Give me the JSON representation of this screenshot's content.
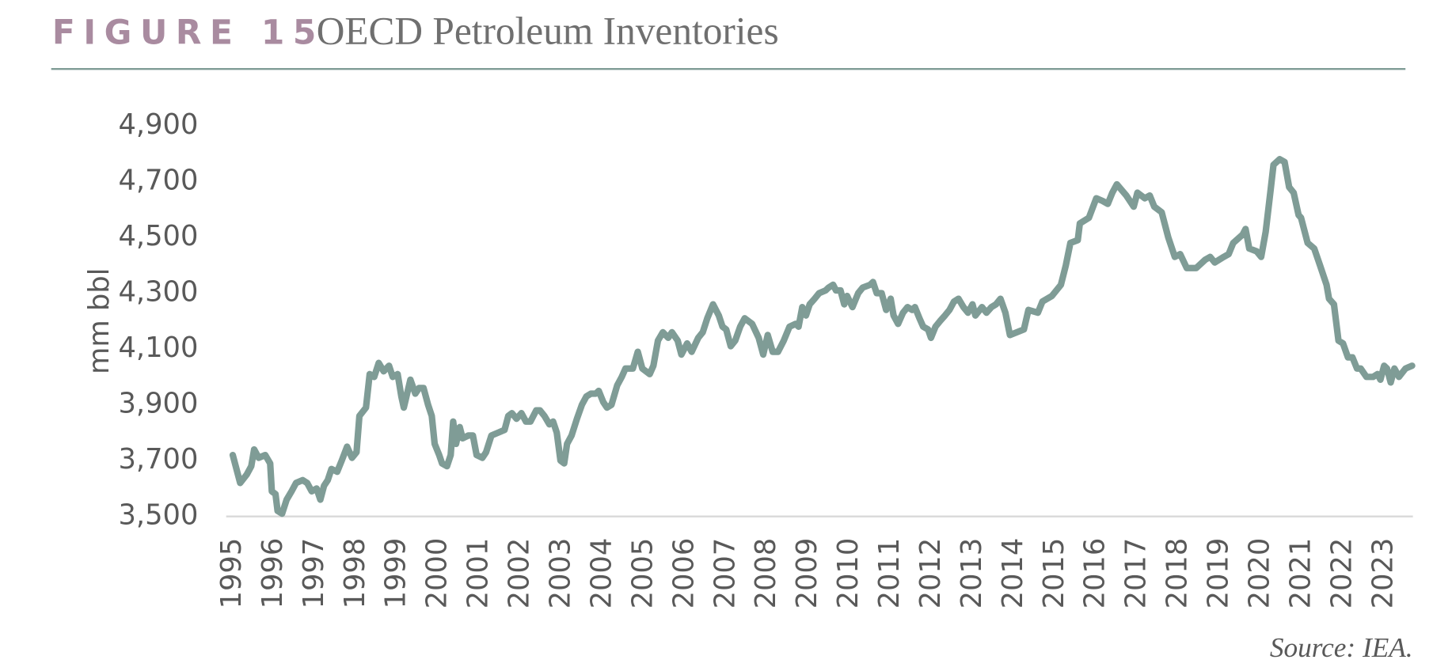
{
  "chart_data": {
    "type": "line",
    "figure_label": "FIGURE 15",
    "title": "OECD Petroleum Inventories",
    "y_label": "mm bbl",
    "source": "Source: IEA.",
    "xlim": [
      1994.84,
      2023.7
    ],
    "ylim": [
      3500,
      4900
    ],
    "xticks": [
      1995,
      1996,
      1997,
      1998,
      1999,
      2000,
      2001,
      2002,
      2003,
      2004,
      2005,
      2006,
      2007,
      2008,
      2009,
      2010,
      2011,
      2012,
      2013,
      2014,
      2015,
      2016,
      2017,
      2018,
      2019,
      2020,
      2021,
      2022,
      2023
    ],
    "yticks": [
      {
        "value": 4900,
        "label": "4,900"
      },
      {
        "value": 4700,
        "label": "4,700"
      },
      {
        "value": 4500,
        "label": "4,500"
      },
      {
        "value": 4300,
        "label": "4,300"
      },
      {
        "value": 4100,
        "label": "4,100"
      },
      {
        "value": 3900,
        "label": "3,900"
      },
      {
        "value": 3700,
        "label": "3,700"
      },
      {
        "value": 3500,
        "label": "3,500"
      }
    ],
    "grid": false,
    "series": [
      {
        "name": "OECD Petroleum Inventories",
        "color": "#7f9c96",
        "x": [
          1995.0,
          1995.18,
          1995.34,
          1995.45,
          1995.52,
          1995.63,
          1995.79,
          1995.91,
          1995.95,
          1996.04,
          1996.09,
          1996.2,
          1996.31,
          1996.43,
          1996.54,
          1996.7,
          1996.81,
          1996.92,
          1997.04,
          1997.13,
          1997.22,
          1997.31,
          1997.4,
          1997.54,
          1997.65,
          1997.78,
          1997.9,
          1998.01,
          1998.08,
          1998.24,
          1998.33,
          1998.44,
          1998.55,
          1998.67,
          1998.8,
          1998.89,
          1999.01,
          1999.1,
          1999.16,
          1999.32,
          1999.44,
          1999.53,
          1999.64,
          1999.75,
          1999.84,
          1999.91,
          2000.02,
          2000.09,
          2000.21,
          2000.3,
          2000.36,
          2000.43,
          2000.52,
          2000.59,
          2000.73,
          2000.84,
          2000.93,
          2001.07,
          2001.16,
          2001.29,
          2001.45,
          2001.61,
          2001.7,
          2001.79,
          2001.9,
          2002.02,
          2002.13,
          2002.24,
          2002.38,
          2002.47,
          2002.58,
          2002.7,
          2002.79,
          2002.88,
          2002.97,
          2003.06,
          2003.13,
          2003.24,
          2003.37,
          2003.49,
          2003.6,
          2003.71,
          2003.83,
          2003.9,
          2004.01,
          2004.1,
          2004.21,
          2004.35,
          2004.46,
          2004.55,
          2004.73,
          2004.85,
          2004.96,
          2005.14,
          2005.23,
          2005.34,
          2005.46,
          2005.59,
          2005.68,
          2005.82,
          2005.91,
          2006.05,
          2006.16,
          2006.32,
          2006.43,
          2006.54,
          2006.68,
          2006.82,
          2006.91,
          2007.0,
          2007.11,
          2007.22,
          2007.34,
          2007.45,
          2007.63,
          2007.79,
          2007.9,
          2008.01,
          2008.13,
          2008.26,
          2008.4,
          2008.54,
          2008.69,
          2008.76,
          2008.85,
          2008.94,
          2009.03,
          2009.15,
          2009.26,
          2009.42,
          2009.49,
          2009.6,
          2009.67,
          2009.78,
          2009.87,
          2009.94,
          2010.07,
          2010.21,
          2010.32,
          2010.5,
          2010.57,
          2010.66,
          2010.78,
          2010.89,
          2011.0,
          2011.07,
          2011.18,
          2011.3,
          2011.41,
          2011.52,
          2011.59,
          2011.7,
          2011.79,
          2011.91,
          2011.98,
          2012.09,
          2012.2,
          2012.32,
          2012.43,
          2012.54,
          2012.65,
          2012.77,
          2012.88,
          2012.99,
          2013.06,
          2013.22,
          2013.33,
          2013.45,
          2013.56,
          2013.67,
          2013.79,
          2013.9,
          2014.24,
          2014.35,
          2014.58,
          2014.69,
          2014.92,
          2015.14,
          2015.26,
          2015.37,
          2015.55,
          2015.6,
          2015.82,
          2016.0,
          2016.16,
          2016.28,
          2016.39,
          2016.5,
          2016.73,
          2016.91,
          2017.0,
          2017.18,
          2017.3,
          2017.41,
          2017.59,
          2017.75,
          2017.91,
          2018.04,
          2018.2,
          2018.43,
          2018.65,
          2018.77,
          2018.88,
          2019.1,
          2019.22,
          2019.33,
          2019.56,
          2019.63,
          2019.72,
          2019.9,
          2020.01,
          2020.12,
          2020.24,
          2020.31,
          2020.46,
          2020.58,
          2020.69,
          2020.8,
          2020.92,
          2020.98,
          2021.14,
          2021.3,
          2021.44,
          2021.6,
          2021.66,
          2021.78,
          2021.89,
          2022.0,
          2022.12,
          2022.23,
          2022.34,
          2022.43,
          2022.57,
          2022.73,
          2022.84,
          2022.91,
          2023.0,
          2023.07,
          2023.16,
          2023.25,
          2023.36,
          2023.52,
          2023.68
        ],
        "values": [
          3720,
          3620,
          3650,
          3680,
          3740,
          3710,
          3720,
          3690,
          3590,
          3580,
          3520,
          3510,
          3560,
          3590,
          3620,
          3630,
          3620,
          3590,
          3600,
          3560,
          3610,
          3630,
          3670,
          3660,
          3700,
          3750,
          3710,
          3730,
          3860,
          3890,
          4010,
          4000,
          4050,
          4020,
          4040,
          4000,
          4010,
          3930,
          3890,
          3990,
          3940,
          3960,
          3960,
          3900,
          3860,
          3760,
          3720,
          3690,
          3680,
          3720,
          3840,
          3760,
          3820,
          3780,
          3790,
          3790,
          3720,
          3710,
          3730,
          3790,
          3800,
          3810,
          3860,
          3870,
          3850,
          3870,
          3840,
          3840,
          3880,
          3880,
          3860,
          3830,
          3840,
          3800,
          3700,
          3690,
          3760,
          3790,
          3850,
          3900,
          3930,
          3940,
          3940,
          3950,
          3910,
          3890,
          3900,
          3970,
          4000,
          4030,
          4030,
          4090,
          4030,
          4010,
          4040,
          4130,
          4160,
          4140,
          4160,
          4130,
          4080,
          4120,
          4090,
          4140,
          4160,
          4210,
          4260,
          4220,
          4180,
          4170,
          4110,
          4130,
          4180,
          4210,
          4190,
          4140,
          4080,
          4150,
          4090,
          4090,
          4130,
          4180,
          4190,
          4180,
          4250,
          4220,
          4260,
          4280,
          4300,
          4310,
          4320,
          4330,
          4310,
          4310,
          4260,
          4290,
          4250,
          4300,
          4320,
          4330,
          4340,
          4300,
          4300,
          4240,
          4280,
          4220,
          4190,
          4230,
          4250,
          4240,
          4250,
          4210,
          4180,
          4170,
          4140,
          4180,
          4200,
          4220,
          4240,
          4270,
          4280,
          4250,
          4230,
          4260,
          4220,
          4250,
          4230,
          4250,
          4260,
          4280,
          4230,
          4150,
          4170,
          4240,
          4230,
          4270,
          4290,
          4330,
          4400,
          4480,
          4490,
          4550,
          4570,
          4640,
          4630,
          4620,
          4660,
          4690,
          4650,
          4610,
          4660,
          4640,
          4650,
          4610,
          4590,
          4500,
          4430,
          4440,
          4390,
          4390,
          4420,
          4430,
          4410,
          4430,
          4440,
          4480,
          4510,
          4530,
          4460,
          4450,
          4430,
          4520,
          4670,
          4760,
          4780,
          4770,
          4680,
          4660,
          4580,
          4570,
          4480,
          4460,
          4400,
          4330,
          4280,
          4260,
          4130,
          4120,
          4070,
          4070,
          4030,
          4030,
          4000,
          4000,
          4010,
          3990,
          4040,
          4030,
          3980,
          4030,
          4000,
          4030,
          4040
        ]
      }
    ]
  }
}
